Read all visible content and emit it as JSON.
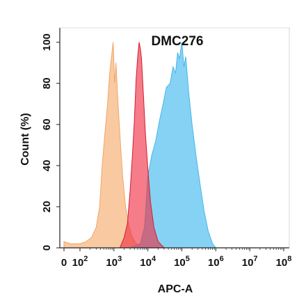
{
  "chart_data": {
    "type": "area",
    "title": "DMC276",
    "xlabel": "APC-A",
    "ylabel": "Count (%)",
    "x_scale": "biexponential-log",
    "xlim": [
      0,
      100000000
    ],
    "ylim": [
      0,
      107
    ],
    "grid": false,
    "legend": "none",
    "x_ticks": [
      {
        "base": "0",
        "exp": ""
      },
      {
        "base": "10",
        "exp": "2"
      },
      {
        "base": "10",
        "exp": "3"
      },
      {
        "base": "10",
        "exp": "4"
      },
      {
        "base": "10",
        "exp": "5"
      },
      {
        "base": "10",
        "exp": "6"
      },
      {
        "base": "10",
        "exp": "7"
      },
      {
        "base": "10",
        "exp": "8"
      }
    ],
    "y_ticks": [
      "0",
      "20",
      "40",
      "60",
      "80",
      "100"
    ],
    "series": [
      {
        "color": "#f9c79d",
        "stroke": "#f3a463",
        "points": [
          [
            0,
            3
          ],
          [
            40,
            2
          ],
          [
            100,
            2
          ],
          [
            150,
            3
          ],
          [
            220,
            5
          ],
          [
            300,
            10
          ],
          [
            380,
            20
          ],
          [
            450,
            40
          ],
          [
            550,
            57
          ],
          [
            650,
            70
          ],
          [
            750,
            85
          ],
          [
            850,
            93
          ],
          [
            950,
            100
          ],
          [
            1050,
            80
          ],
          [
            1150,
            90
          ],
          [
            1300,
            72
          ],
          [
            1500,
            55
          ],
          [
            1800,
            35
          ],
          [
            2200,
            20
          ],
          [
            2800,
            10
          ],
          [
            3500,
            5
          ],
          [
            4500,
            2
          ],
          [
            6000,
            1
          ],
          [
            10000,
            0
          ]
        ]
      },
      {
        "color": "#7fd0f3",
        "stroke": "#47b6ea",
        "points": [
          [
            3000,
            0
          ],
          [
            6000,
            2
          ],
          [
            8000,
            10
          ],
          [
            10000,
            35
          ],
          [
            13000,
            45
          ],
          [
            17000,
            52
          ],
          [
            22000,
            62
          ],
          [
            28000,
            70
          ],
          [
            35000,
            78
          ],
          [
            45000,
            80
          ],
          [
            55000,
            88
          ],
          [
            65000,
            85
          ],
          [
            75000,
            95
          ],
          [
            85000,
            92
          ],
          [
            100000,
            100
          ],
          [
            115000,
            88
          ],
          [
            130000,
            93
          ],
          [
            160000,
            75
          ],
          [
            200000,
            60
          ],
          [
            260000,
            45
          ],
          [
            350000,
            30
          ],
          [
            450000,
            18
          ],
          [
            600000,
            8
          ],
          [
            800000,
            2
          ],
          [
            1000000,
            0
          ]
        ]
      },
      {
        "color": "#ef2c3f",
        "opacity": 0.62,
        "stroke": "#d21e30",
        "points": [
          [
            1500,
            0
          ],
          [
            2000,
            5
          ],
          [
            2500,
            12
          ],
          [
            3000,
            28
          ],
          [
            3500,
            45
          ],
          [
            4000,
            62
          ],
          [
            4500,
            82
          ],
          [
            5000,
            93
          ],
          [
            5500,
            100
          ],
          [
            6000,
            97
          ],
          [
            6500,
            92
          ],
          [
            7500,
            72
          ],
          [
            8500,
            55
          ],
          [
            10000,
            38
          ],
          [
            12000,
            22
          ],
          [
            15000,
            10
          ],
          [
            20000,
            3
          ],
          [
            30000,
            0
          ]
        ]
      }
    ]
  }
}
